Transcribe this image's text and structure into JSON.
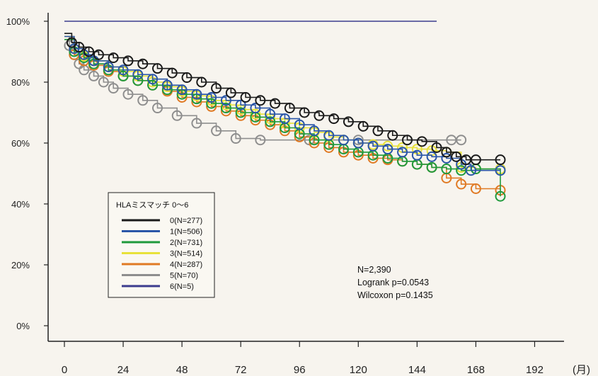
{
  "chart_data": {
    "type": "line",
    "title": "",
    "xlabel": "",
    "ylabel": "",
    "x_unit": "(月)",
    "xlim": [
      0,
      204
    ],
    "ylim": [
      0,
      100
    ],
    "x_ticks": [
      0,
      24,
      48,
      72,
      96,
      120,
      144,
      168,
      192
    ],
    "y_ticks": [
      0,
      20,
      40,
      60,
      80,
      100
    ],
    "y_tick_labels": [
      "0%",
      "20%",
      "40%",
      "60%",
      "80%",
      "100%"
    ],
    "grid": false,
    "legend": {
      "title": "HLAミスマッチ 0～6",
      "placement": "middle-left"
    },
    "series": [
      {
        "name": "0(N=277)",
        "color": "#1a1a1a",
        "x": [
          0,
          3,
          6,
          10,
          14,
          20,
          26,
          32,
          38,
          44,
          50,
          56,
          62,
          68,
          74,
          80,
          86,
          92,
          98,
          104,
          110,
          116,
          122,
          128,
          134,
          140,
          146,
          152,
          156,
          160,
          164,
          168,
          178
        ],
        "y": [
          96,
          93,
          91.5,
          90,
          89,
          88,
          87,
          86,
          84.5,
          83,
          81.5,
          80,
          78,
          76.5,
          75,
          74,
          73,
          71.5,
          70,
          69,
          68,
          67,
          65.5,
          64,
          62.5,
          61,
          60.5,
          58.5,
          57,
          55.5,
          54.5,
          54.5,
          54.5
        ]
      },
      {
        "name": "1(N=506)",
        "color": "#2a56a8",
        "x": [
          0,
          4,
          8,
          12,
          18,
          24,
          30,
          36,
          42,
          48,
          54,
          60,
          66,
          72,
          78,
          84,
          90,
          96,
          102,
          108,
          114,
          120,
          126,
          132,
          138,
          144,
          150,
          156,
          162,
          166,
          178
        ],
        "y": [
          95,
          91,
          89,
          87,
          85,
          84,
          82.5,
          81,
          79,
          77.5,
          76,
          75,
          74,
          72.5,
          71.5,
          69.5,
          68,
          66,
          64,
          62.5,
          61,
          60,
          59,
          58,
          57,
          56,
          55.5,
          55,
          53,
          51,
          51
        ]
      },
      {
        "name": "2(N=731)",
        "color": "#1f9a3c",
        "x": [
          0,
          4,
          8,
          12,
          18,
          24,
          30,
          36,
          42,
          48,
          54,
          60,
          66,
          72,
          78,
          84,
          90,
          96,
          102,
          108,
          114,
          120,
          126,
          132,
          138,
          144,
          150,
          156,
          162,
          168,
          178
        ],
        "y": [
          94,
          90,
          88,
          86,
          84,
          82,
          80.5,
          79,
          77.5,
          76,
          74.5,
          73,
          71.5,
          70,
          68.5,
          67,
          65,
          63,
          61,
          59.5,
          58,
          57,
          56,
          55,
          54,
          53,
          52,
          51.5,
          51,
          51.5,
          42.5
        ]
      },
      {
        "name": "3(N=514)",
        "color": "#e8e23a",
        "x": [
          0,
          4,
          8,
          12,
          18,
          24,
          30,
          36,
          42,
          48,
          54,
          60,
          66,
          72,
          78,
          84,
          90,
          96,
          102,
          108,
          114,
          120,
          126,
          132,
          138,
          144,
          150,
          156,
          162,
          168,
          178
        ],
        "y": [
          95,
          91,
          88.5,
          87,
          85,
          83.5,
          82,
          80,
          78.5,
          77,
          75.5,
          74,
          72.5,
          71,
          69.5,
          68,
          66.5,
          65,
          63.5,
          62,
          61,
          60,
          59.5,
          59,
          58.5,
          58,
          57.5,
          57,
          52,
          51.5,
          51.5
        ]
      },
      {
        "name": "4(N=287)",
        "color": "#e07a24",
        "x": [
          0,
          4,
          8,
          12,
          18,
          24,
          30,
          36,
          42,
          48,
          54,
          60,
          66,
          72,
          78,
          84,
          90,
          96,
          102,
          108,
          114,
          120,
          126,
          132,
          138,
          144,
          150,
          156,
          162,
          168,
          178
        ],
        "y": [
          94,
          89,
          87,
          85.5,
          83.5,
          82,
          80.5,
          79,
          77,
          75,
          73.5,
          72,
          70.5,
          69,
          67.5,
          66,
          64,
          62,
          60,
          58.5,
          57,
          56,
          55,
          54.5,
          54,
          53,
          52,
          48.5,
          46.5,
          45,
          44.5
        ]
      },
      {
        "name": "5(N=70)",
        "color": "#8e8e8e",
        "x": [
          0,
          2,
          4,
          6,
          8,
          12,
          16,
          20,
          26,
          32,
          38,
          46,
          54,
          62,
          70,
          80,
          100,
          120,
          140,
          158,
          162
        ],
        "y": [
          95,
          92,
          89,
          86,
          84,
          82,
          80,
          78,
          76,
          74,
          71.5,
          69,
          66.5,
          64,
          61.5,
          61,
          61,
          61,
          61,
          61,
          61
        ]
      },
      {
        "name": "6(N=5)",
        "color": "#3c3c8e",
        "x": [
          0,
          152
        ],
        "y": [
          100,
          100
        ]
      }
    ],
    "annotations": {
      "n_total": "N=2,390",
      "logrank": "Logrank p=0.0543",
      "wilcoxon": "Wilcoxon p=0.1435"
    }
  }
}
